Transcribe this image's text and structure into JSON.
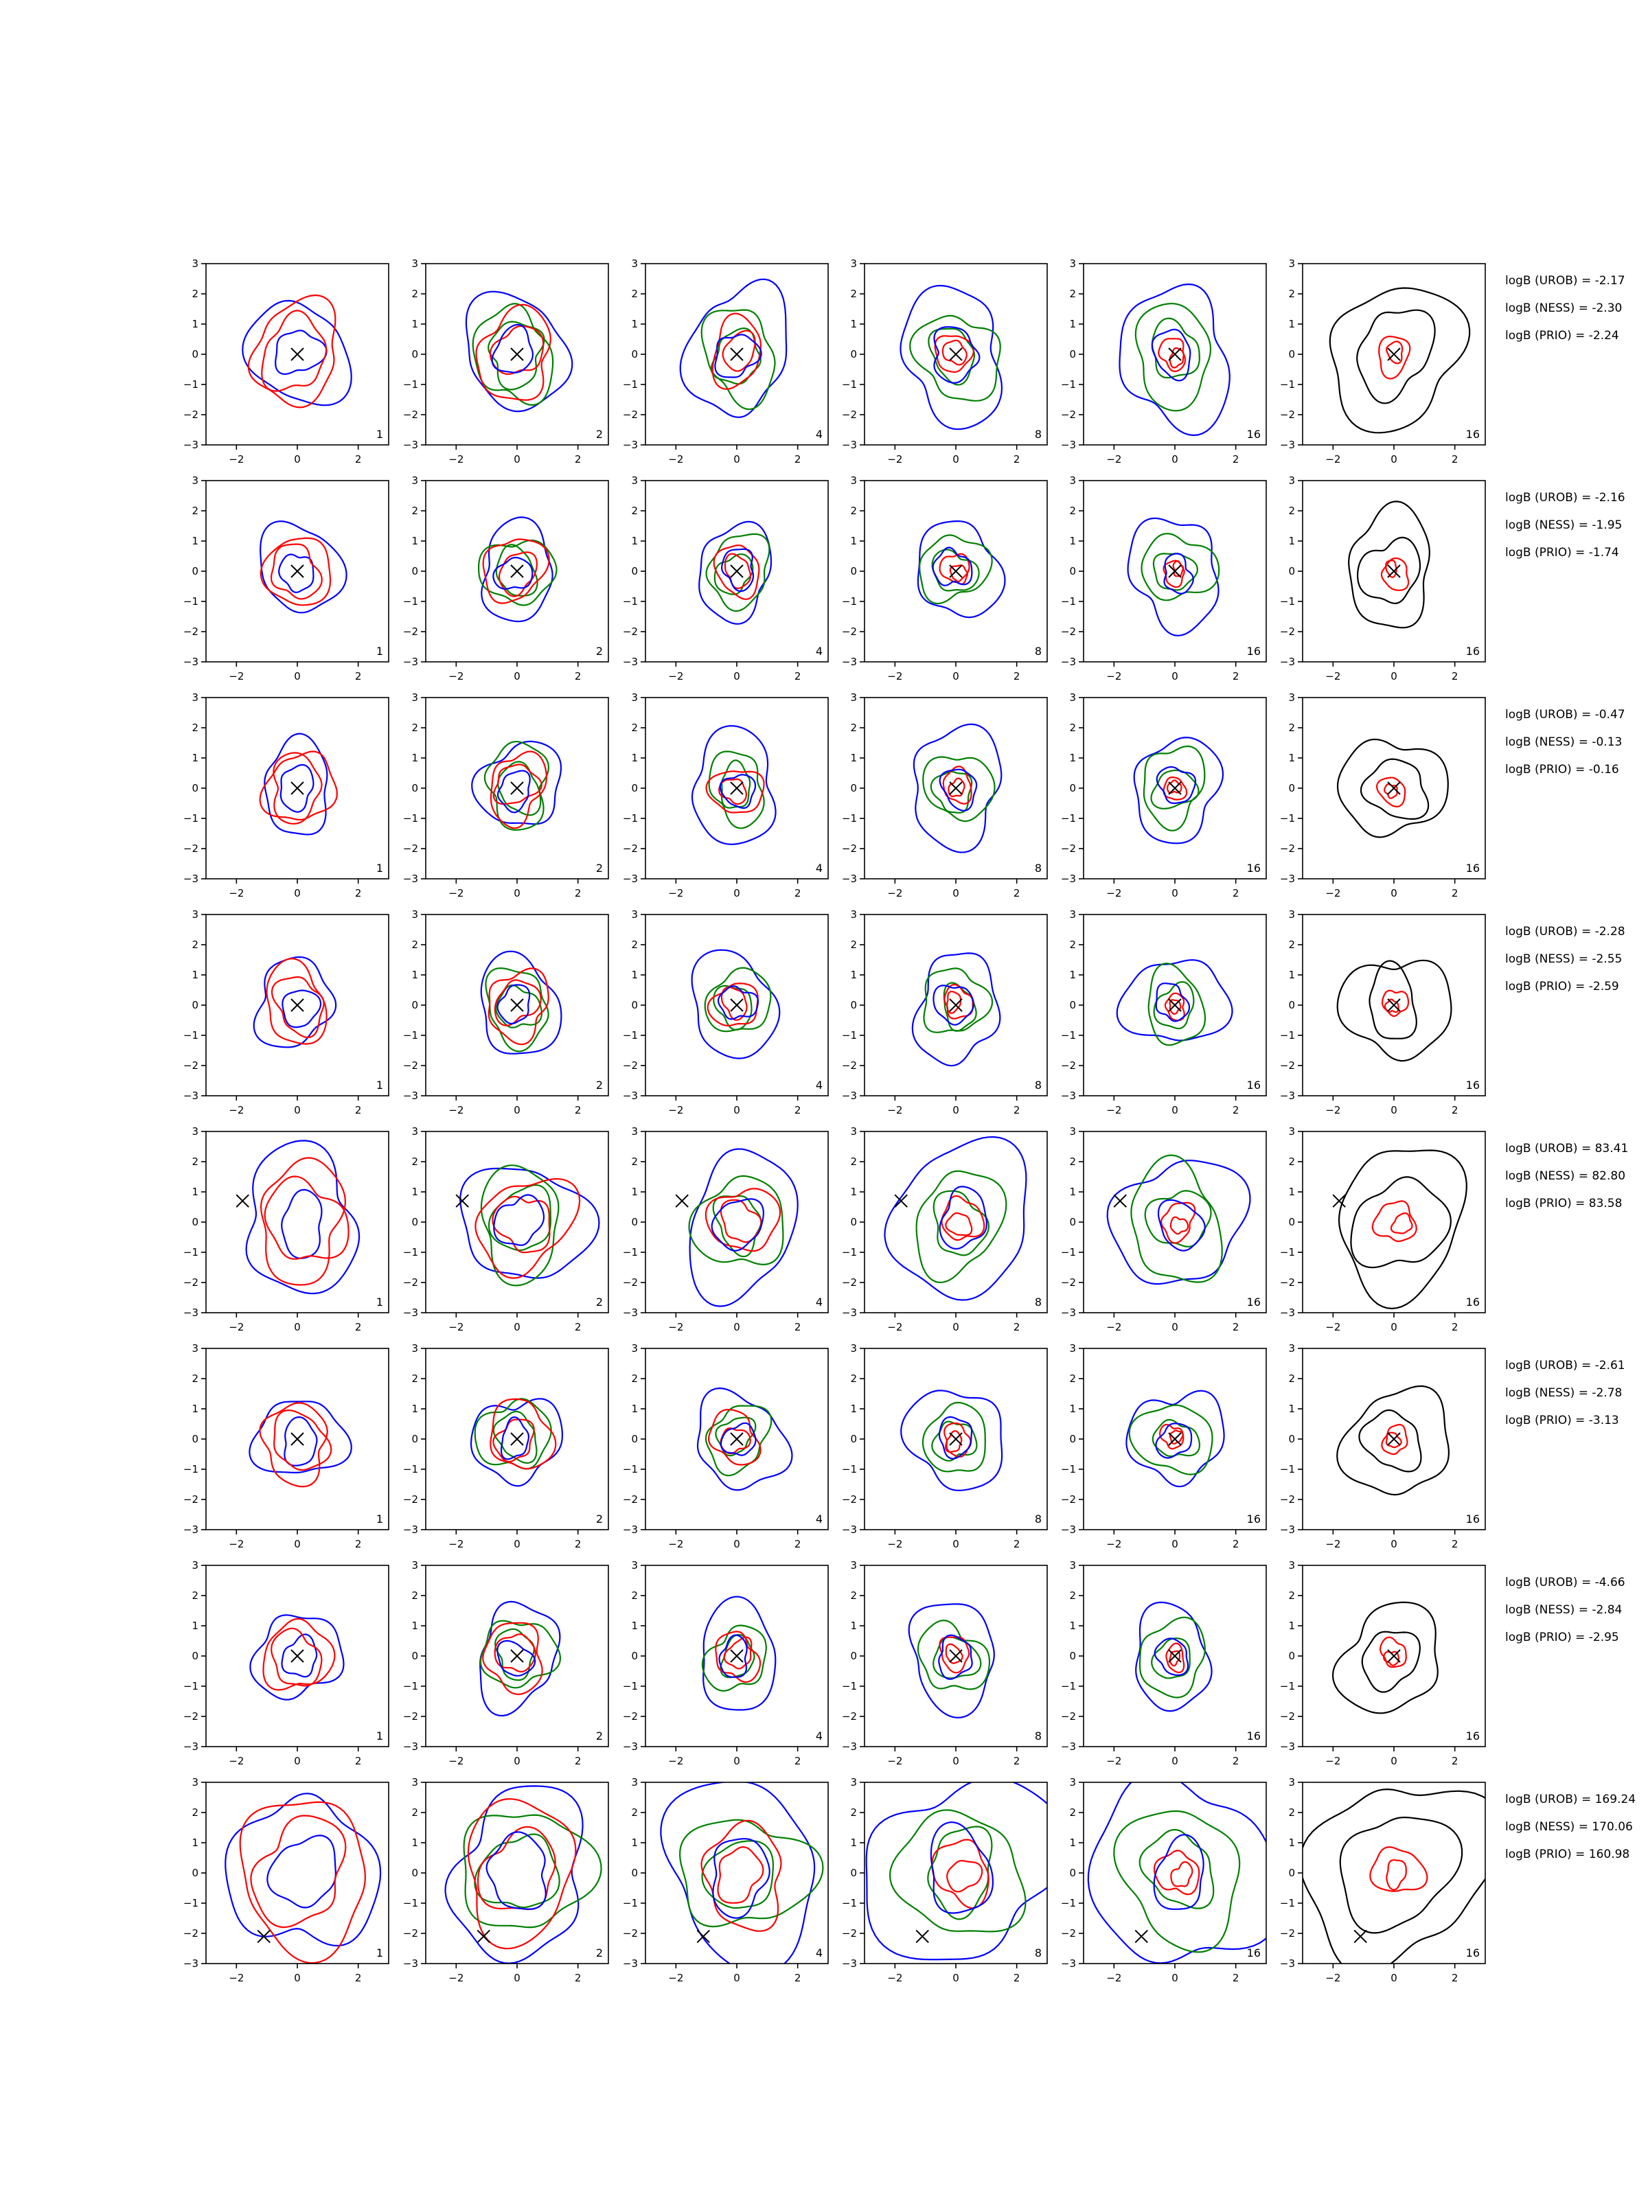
{
  "colors": {
    "blue": "#0000ff",
    "green": "#008000",
    "red": "#ff0000",
    "black": "#000000",
    "axes": "#000000",
    "background": "#ffffff"
  },
  "chart_data": {
    "type": "contour-grid",
    "grid": {
      "rows": 8,
      "columns": 6
    },
    "panel_axes": {
      "xlim": [
        -3,
        3
      ],
      "ylim": [
        -3,
        3
      ],
      "xticks": [
        -2,
        0,
        2
      ],
      "yticks": [
        -3,
        -2,
        -1,
        0,
        1,
        2,
        3
      ],
      "grid": false
    },
    "column_labels": [
      "1",
      "2",
      "4",
      "8",
      "16",
      "16"
    ],
    "rows": [
      {
        "marker": [
          0,
          0
        ],
        "spread": 0.9,
        "panel_labels": [
          "1",
          "2",
          "4",
          "8",
          "16",
          "16"
        ],
        "annotations": [
          "logB (UROB) = -2.17",
          "logB (NESS) = -2.30",
          "logB (PRIO) = -2.24"
        ]
      },
      {
        "marker": [
          0,
          0
        ],
        "spread": 0.7,
        "panel_labels": [
          "1",
          "2",
          "4",
          "8",
          "16",
          "16"
        ],
        "annotations": [
          "logB (UROB) = -2.16",
          "logB (NESS) = -1.95",
          "logB (PRIO) = -1.74"
        ]
      },
      {
        "marker": [
          0,
          0
        ],
        "spread": 0.7,
        "panel_labels": [
          "1",
          "2",
          "4",
          "8",
          "16",
          "16"
        ],
        "annotations": [
          "logB (UROB) = -0.47",
          "logB (NESS) = -0.13",
          "logB (PRIO) = -0.16"
        ]
      },
      {
        "marker": [
          0,
          0
        ],
        "spread": 0.7,
        "panel_labels": [
          "1",
          "2",
          "4",
          "8",
          "16",
          "16"
        ],
        "annotations": [
          "logB (UROB) = -2.28",
          "logB (NESS) = -2.55",
          "logB (PRIO) = -2.59"
        ]
      },
      {
        "marker": [
          -1.8,
          0.7
        ],
        "spread": 1.0,
        "panel_labels": [
          "1",
          "2",
          "4",
          "8",
          "16",
          "16"
        ],
        "annotations": [
          "logB (UROB) = 83.41",
          "logB (NESS) = 82.80",
          "logB (PRIO) = 83.58"
        ]
      },
      {
        "marker": [
          0,
          0
        ],
        "spread": 0.7,
        "panel_labels": [
          "1",
          "2",
          "4",
          "8",
          "16",
          "16"
        ],
        "annotations": [
          "logB (UROB) = -2.61",
          "logB (NESS) = -2.78",
          "logB (PRIO) = -3.13"
        ]
      },
      {
        "marker": [
          0,
          0
        ],
        "spread": 0.7,
        "panel_labels": [
          "1",
          "2",
          "4",
          "8",
          "16",
          "16"
        ],
        "annotations": [
          "logB (UROB) = -4.66",
          "logB (NESS) = -2.84",
          "logB (PRIO) = -2.95"
        ]
      },
      {
        "marker": [
          -1.1,
          -2.1
        ],
        "spread": 1.3,
        "panel_labels": [
          "1",
          "2",
          "4",
          "8",
          "16",
          "16"
        ],
        "annotations": [
          "logB (UROB) = 169.24",
          "logB (NESS) = 170.06",
          "logB (PRIO) = 160.98"
        ]
      }
    ]
  }
}
